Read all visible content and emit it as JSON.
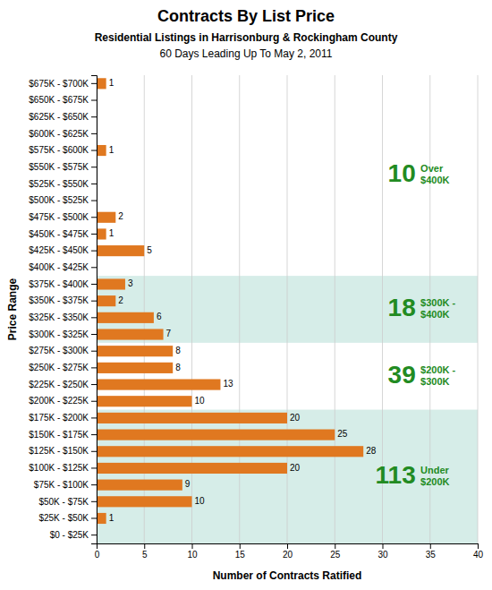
{
  "chart_data": {
    "type": "bar",
    "orientation": "horizontal",
    "title": "Contracts By List Price",
    "subtitle": [
      "Residential Listings in Harrisonburg & Rockingham County",
      "60 Days Leading Up To May 2, 2011"
    ],
    "x_label": "Number of Contracts Ratified",
    "y_label": "Price Range",
    "categories": [
      "$675K - $700K",
      "$650K - $675K",
      "$625K - $650K",
      "$600K - $625K",
      "$575K - $600K",
      "$550K - $575K",
      "$525K - $550K",
      "$500K - $525K",
      "$475K - $500K",
      "$450K - $475K",
      "$425K - $450K",
      "$400K - $425K",
      "$375K - $400K",
      "$350K - $375K",
      "$325K - $350K",
      "$300K - $325K",
      "$275K - $300K",
      "$250K - $275K",
      "$225K - $250K",
      "$200K - $225K",
      "$175K - $200K",
      "$150K - $175K",
      "$125K - $150K",
      "$100K - $125K",
      "$75K - $100K",
      "$50K - $75K",
      "$25K - $50K",
      "$0 - $25K"
    ],
    "values": [
      1,
      0,
      0,
      0,
      1,
      0,
      0,
      0,
      2,
      1,
      5,
      0,
      3,
      2,
      6,
      7,
      8,
      8,
      13,
      10,
      20,
      25,
      28,
      20,
      9,
      10,
      1,
      0
    ],
    "value_labels": [
      "1",
      null,
      null,
      null,
      "1",
      null,
      null,
      null,
      "2",
      "1",
      "5",
      null,
      "3",
      "2",
      "6",
      "7",
      "8",
      "8",
      "13",
      "10",
      "20",
      "25",
      "28",
      "20",
      "9",
      "10",
      "1",
      null
    ],
    "data_labels": true,
    "color": "#E07820",
    "xlim": [
      0,
      40
    ],
    "xticks": [
      0,
      5,
      10,
      15,
      20,
      25,
      30,
      35,
      40
    ],
    "grid": true,
    "annotations": [
      {
        "value": 10,
        "label": "Over\n$400K"
      },
      {
        "value": 18,
        "label": "$300K -\n$400K"
      },
      {
        "value": 39,
        "label": "$200K -\n$300K"
      },
      {
        "value": 113,
        "label": "Under\n$200K"
      }
    ]
  }
}
